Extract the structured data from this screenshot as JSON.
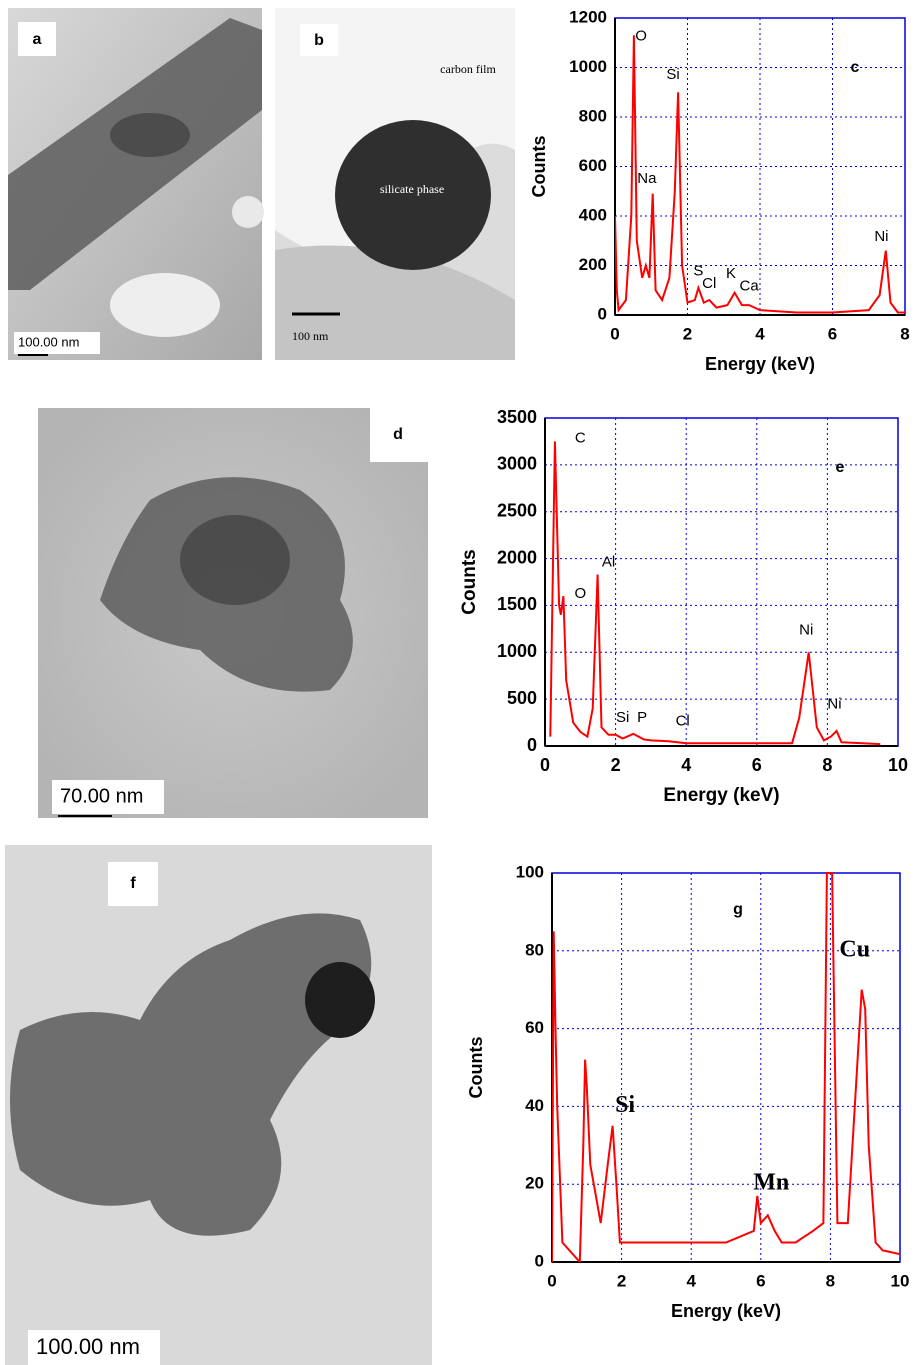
{
  "images": [
    {
      "label": "a",
      "scale": "100.00 nm"
    },
    {
      "label": "b",
      "texts": [
        "carbon film",
        "silicate phase"
      ],
      "scale": "100 nm"
    },
    {
      "label": "d",
      "scale": "70.00 nm"
    },
    {
      "label": "f",
      "scale": "100.00 nm"
    }
  ],
  "chart_data": [
    {
      "type": "line",
      "label": "c",
      "xlabel": "Energy (keV)",
      "ylabel": "Counts",
      "color": "#ff0000",
      "grid": true,
      "xlim": [
        0,
        8
      ],
      "ylim": [
        0,
        1200
      ],
      "xticks": [
        0,
        2,
        4,
        6,
        8
      ],
      "yticks": [
        0,
        200,
        400,
        600,
        800,
        1000,
        1200
      ],
      "x": [
        0,
        0.05,
        0.1,
        0.3,
        0.45,
        0.52,
        0.6,
        0.75,
        0.85,
        0.95,
        1.04,
        1.12,
        1.3,
        1.5,
        1.65,
        1.74,
        1.85,
        2.0,
        2.2,
        2.3,
        2.45,
        2.6,
        2.8,
        3.1,
        3.3,
        3.5,
        3.7,
        4.0,
        5.0,
        6.0,
        7.0,
        7.3,
        7.47,
        7.6,
        7.8,
        8.0
      ],
      "values": [
        400,
        100,
        20,
        60,
        400,
        1130,
        300,
        150,
        200,
        150,
        490,
        100,
        60,
        150,
        500,
        900,
        200,
        50,
        60,
        110,
        50,
        60,
        30,
        40,
        90,
        40,
        40,
        20,
        10,
        10,
        20,
        80,
        260,
        50,
        10,
        10
      ],
      "annotations": [
        {
          "text": "O",
          "x": 0.72,
          "y": 1125
        },
        {
          "text": "Na",
          "x": 0.88,
          "y": 550
        },
        {
          "text": "Si",
          "x": 1.6,
          "y": 970
        },
        {
          "text": "S",
          "x": 2.3,
          "y": 175
        },
        {
          "text": "Cl",
          "x": 2.6,
          "y": 125
        },
        {
          "text": "K",
          "x": 3.2,
          "y": 165
        },
        {
          "text": "Ca",
          "x": 3.7,
          "y": 115
        },
        {
          "text": "Ni",
          "x": 7.35,
          "y": 315
        }
      ]
    },
    {
      "type": "line",
      "label": "e",
      "xlabel": "Energy (keV)",
      "ylabel": "Counts",
      "color": "#ff0000",
      "grid": true,
      "xlim": [
        0,
        10
      ],
      "ylim": [
        0,
        3500
      ],
      "xticks": [
        0,
        2,
        4,
        6,
        8,
        10
      ],
      "yticks": [
        0,
        500,
        1000,
        1500,
        2000,
        2500,
        3000,
        3500
      ],
      "x": [
        0.15,
        0.28,
        0.4,
        0.45,
        0.52,
        0.6,
        0.8,
        1.0,
        1.2,
        1.35,
        1.49,
        1.6,
        1.8,
        2.0,
        2.2,
        2.5,
        2.8,
        3.0,
        3.5,
        4,
        5,
        6,
        7,
        7.2,
        7.47,
        7.7,
        7.9,
        8.1,
        8.26,
        8.4,
        9,
        9.5
      ],
      "values": [
        100,
        3250,
        1500,
        1400,
        1600,
        700,
        250,
        150,
        100,
        400,
        1830,
        200,
        120,
        120,
        80,
        130,
        70,
        60,
        50,
        30,
        30,
        30,
        30,
        300,
        1000,
        200,
        60,
        100,
        160,
        40,
        30,
        20
      ],
      "annotations": [
        {
          "text": "C",
          "x": 1.0,
          "y": 3280
        },
        {
          "text": "O",
          "x": 1.0,
          "y": 1620
        },
        {
          "text": "Al",
          "x": 1.8,
          "y": 1960
        },
        {
          "text": "Ni",
          "x": 7.4,
          "y": 1230
        },
        {
          "text": "Ni",
          "x": 8.2,
          "y": 440
        },
        {
          "text": "Si",
          "x": 2.2,
          "y": 300
        },
        {
          "text": "P",
          "x": 2.75,
          "y": 300
        },
        {
          "text": "Cl",
          "x": 3.9,
          "y": 260
        }
      ]
    },
    {
      "type": "line",
      "label": "g",
      "xlabel": "Energy (keV)",
      "ylabel": "Counts",
      "color": "#ff0000",
      "grid": true,
      "xlim": [
        0,
        10
      ],
      "ylim": [
        0,
        100
      ],
      "xticks": [
        0,
        2,
        4,
        6,
        8,
        10
      ],
      "yticks": [
        0,
        20,
        40,
        60,
        80,
        100
      ],
      "x": [
        0,
        0.05,
        0.1,
        0.15,
        0.3,
        0.8,
        0.9,
        0.95,
        1.0,
        1.1,
        1.2,
        1.4,
        1.6,
        1.74,
        1.85,
        1.95,
        2.2,
        3,
        4,
        5,
        5.8,
        5.9,
        6.0,
        6.2,
        6.4,
        6.6,
        7,
        7.5,
        7.8,
        7.9,
        8.05,
        8.2,
        8.5,
        8.7,
        8.9,
        9.0,
        9.1,
        9.3,
        9.5,
        10
      ],
      "values": [
        0,
        85,
        60,
        40,
        5,
        0,
        30,
        52,
        45,
        25,
        20,
        10,
        25,
        35,
        20,
        5,
        5,
        5,
        5,
        5,
        8,
        17,
        10,
        12,
        8,
        5,
        5,
        8,
        10,
        100,
        100,
        10,
        10,
        40,
        70,
        65,
        30,
        5,
        3,
        2
      ],
      "annotations": [
        {
          "text": "Si",
          "x": 2.1,
          "y": 40
        },
        {
          "text": "Mn",
          "x": 6.3,
          "y": 20
        },
        {
          "text": "Cu",
          "x": 8.7,
          "y": 80
        }
      ]
    }
  ]
}
